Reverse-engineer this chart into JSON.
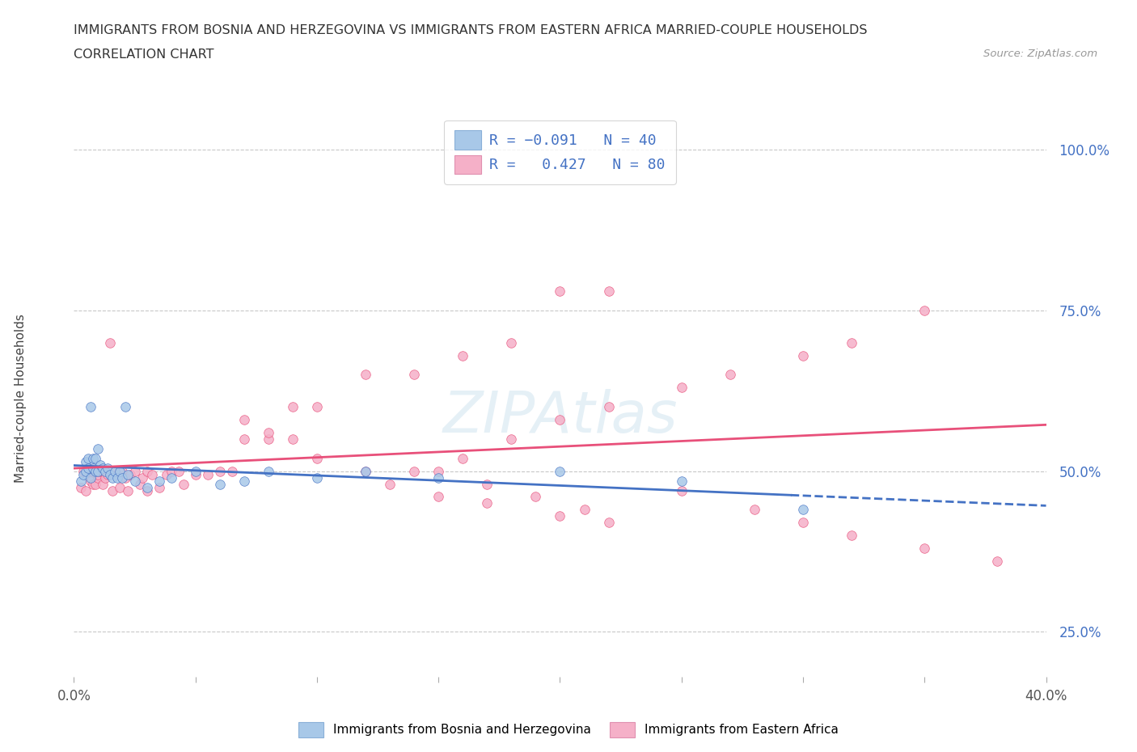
{
  "title_line1": "IMMIGRANTS FROM BOSNIA AND HERZEGOVINA VS IMMIGRANTS FROM EASTERN AFRICA MARRIED-COUPLE HOUSEHOLDS",
  "title_line2": "CORRELATION CHART",
  "source_text": "Source: ZipAtlas.com",
  "ylabel": "Married-couple Households",
  "legend_label1": "Immigrants from Bosnia and Herzegovina",
  "legend_label2": "Immigrants from Eastern Africa",
  "R1": -0.091,
  "N1": 40,
  "R2": 0.427,
  "N2": 80,
  "color1": "#a8c8e8",
  "color2": "#f5b0c8",
  "line_color1": "#4472c4",
  "line_color2": "#e8507a",
  "xmin": 0.0,
  "xmax": 0.4,
  "ymin": 0.18,
  "ymax": 1.04,
  "bosnia_x": [
    0.003,
    0.004,
    0.005,
    0.005,
    0.006,
    0.006,
    0.007,
    0.007,
    0.008,
    0.008,
    0.009,
    0.009,
    0.01,
    0.01,
    0.011,
    0.012,
    0.013,
    0.014,
    0.015,
    0.016,
    0.017,
    0.018,
    0.019,
    0.02,
    0.021,
    0.022,
    0.025,
    0.03,
    0.035,
    0.04,
    0.05,
    0.06,
    0.07,
    0.08,
    0.1,
    0.12,
    0.15,
    0.2,
    0.25,
    0.3
  ],
  "bosnia_y": [
    0.485,
    0.495,
    0.5,
    0.515,
    0.52,
    0.505,
    0.49,
    0.6,
    0.52,
    0.505,
    0.5,
    0.52,
    0.5,
    0.535,
    0.51,
    0.505,
    0.5,
    0.505,
    0.495,
    0.49,
    0.5,
    0.49,
    0.5,
    0.49,
    0.6,
    0.495,
    0.485,
    0.475,
    0.485,
    0.49,
    0.5,
    0.48,
    0.485,
    0.5,
    0.49,
    0.5,
    0.49,
    0.5,
    0.485,
    0.44
  ],
  "eastern_x": [
    0.003,
    0.004,
    0.005,
    0.006,
    0.007,
    0.007,
    0.008,
    0.008,
    0.009,
    0.01,
    0.01,
    0.011,
    0.012,
    0.012,
    0.013,
    0.014,
    0.015,
    0.016,
    0.017,
    0.018,
    0.019,
    0.02,
    0.021,
    0.022,
    0.023,
    0.025,
    0.027,
    0.028,
    0.03,
    0.03,
    0.032,
    0.035,
    0.038,
    0.04,
    0.043,
    0.045,
    0.05,
    0.055,
    0.06,
    0.065,
    0.07,
    0.08,
    0.09,
    0.1,
    0.12,
    0.14,
    0.16,
    0.18,
    0.2,
    0.22,
    0.14,
    0.16,
    0.18,
    0.2,
    0.22,
    0.25,
    0.27,
    0.3,
    0.32,
    0.35,
    0.25,
    0.28,
    0.3,
    0.32,
    0.35,
    0.38,
    0.15,
    0.17,
    0.19,
    0.21,
    0.07,
    0.08,
    0.09,
    0.1,
    0.12,
    0.13,
    0.15,
    0.17,
    0.2,
    0.22
  ],
  "eastern_y": [
    0.475,
    0.5,
    0.47,
    0.5,
    0.5,
    0.485,
    0.5,
    0.48,
    0.48,
    0.49,
    0.495,
    0.5,
    0.5,
    0.48,
    0.49,
    0.495,
    0.7,
    0.47,
    0.5,
    0.495,
    0.475,
    0.5,
    0.49,
    0.47,
    0.495,
    0.5,
    0.48,
    0.49,
    0.5,
    0.47,
    0.495,
    0.475,
    0.495,
    0.5,
    0.5,
    0.48,
    0.495,
    0.495,
    0.5,
    0.5,
    0.55,
    0.55,
    0.6,
    0.6,
    0.65,
    0.65,
    0.68,
    0.7,
    0.78,
    0.78,
    0.5,
    0.52,
    0.55,
    0.58,
    0.6,
    0.63,
    0.65,
    0.68,
    0.7,
    0.75,
    0.47,
    0.44,
    0.42,
    0.4,
    0.38,
    0.36,
    0.5,
    0.48,
    0.46,
    0.44,
    0.58,
    0.56,
    0.55,
    0.52,
    0.5,
    0.48,
    0.46,
    0.45,
    0.43,
    0.42
  ]
}
